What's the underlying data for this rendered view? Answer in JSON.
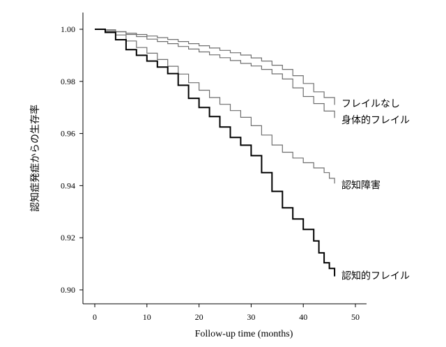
{
  "chart_data": {
    "type": "line",
    "title": "",
    "xlabel": "Follow-up time (months)",
    "ylabel": "認知症発症からの生存率",
    "xlim": [
      0,
      52
    ],
    "ylim": [
      0.897,
      1.0055
    ],
    "x_ticks": [
      0,
      10,
      20,
      30,
      40,
      50
    ],
    "y_ticks": [
      "0.90",
      "0.92",
      "0.94",
      "0.96",
      "0.98",
      "1.00"
    ],
    "grid": false,
    "legend": "inline labels at line ends (right)",
    "colors": {
      "thick_series": "#000000",
      "thin_series": "#6e6e6e"
    },
    "series": [
      {
        "name": "フレイルなし",
        "style": "thin",
        "x": [
          0,
          2,
          4,
          6,
          8,
          10,
          12,
          14,
          16,
          18,
          20,
          22,
          24,
          26,
          28,
          30,
          32,
          34,
          36,
          38,
          40,
          42,
          44,
          46
        ],
        "y": [
          1.0,
          0.9998,
          0.9991,
          0.9985,
          0.998,
          0.9974,
          0.9968,
          0.9961,
          0.9953,
          0.9945,
          0.9937,
          0.9928,
          0.9919,
          0.991,
          0.9901,
          0.989,
          0.9878,
          0.9862,
          0.9846,
          0.9822,
          0.9792,
          0.976,
          0.9738,
          0.971
        ]
      },
      {
        "name": "身体的フレイル",
        "style": "thin",
        "x": [
          0,
          2,
          4,
          6,
          8,
          10,
          12,
          14,
          16,
          18,
          20,
          22,
          24,
          26,
          28,
          30,
          32,
          34,
          36,
          38,
          40,
          42,
          44,
          46
        ],
        "y": [
          1.0,
          0.9997,
          0.999,
          0.998,
          0.9972,
          0.9962,
          0.9953,
          0.9945,
          0.9934,
          0.9924,
          0.9913,
          0.9902,
          0.9891,
          0.988,
          0.9869,
          0.9859,
          0.9846,
          0.9829,
          0.9809,
          0.9775,
          0.9742,
          0.9715,
          0.9686,
          0.966
        ]
      },
      {
        "name": "認知障害",
        "style": "thin",
        "x": [
          0,
          2,
          4,
          6,
          8,
          10,
          12,
          14,
          16,
          18,
          20,
          22,
          24,
          26,
          28,
          30,
          32,
          34,
          36,
          38,
          40,
          42,
          44,
          45,
          46
        ],
        "y": [
          1.0,
          0.9992,
          0.9978,
          0.9955,
          0.993,
          0.9908,
          0.9884,
          0.9858,
          0.9828,
          0.9795,
          0.9766,
          0.9738,
          0.9712,
          0.9688,
          0.9662,
          0.963,
          0.9594,
          0.9556,
          0.9528,
          0.9506,
          0.9488,
          0.9468,
          0.945,
          0.9428,
          0.9408
        ]
      },
      {
        "name": "認知的フレイル",
        "style": "thick",
        "x": [
          0,
          2,
          4,
          6,
          8,
          10,
          12,
          14,
          16,
          18,
          20,
          22,
          24,
          26,
          28,
          30,
          32,
          34,
          36,
          38,
          40,
          42,
          43,
          44,
          45,
          46
        ],
        "y": [
          1.0,
          0.9988,
          0.996,
          0.9922,
          0.99,
          0.9878,
          0.9855,
          0.983,
          0.9785,
          0.9735,
          0.97,
          0.9665,
          0.9625,
          0.9585,
          0.9555,
          0.9515,
          0.945,
          0.9378,
          0.9315,
          0.9272,
          0.9232,
          0.9188,
          0.9142,
          0.9104,
          0.9082,
          0.9052
        ]
      }
    ]
  }
}
